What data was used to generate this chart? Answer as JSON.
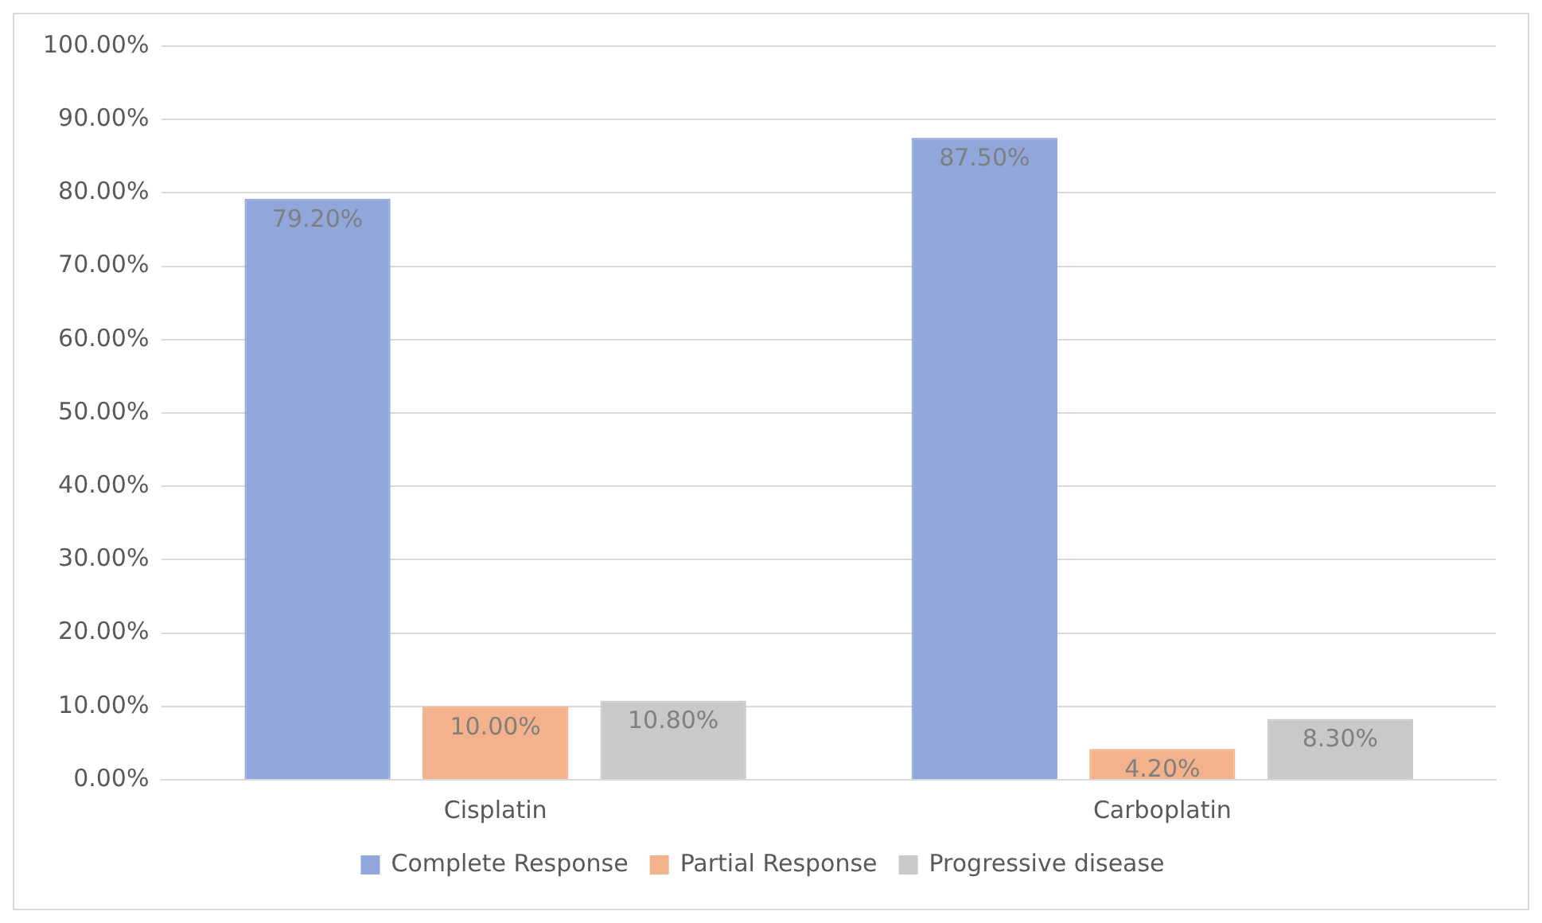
{
  "chart_data": {
    "type": "bar",
    "categories": [
      "Cisplatin",
      "Carboplatin"
    ],
    "series": [
      {
        "name": "Complete Response",
        "color": "#91a7db",
        "values": [
          79.2,
          87.5
        ],
        "value_labels": [
          "79.20%",
          "87.50%"
        ]
      },
      {
        "name": "Partial Response",
        "color": "#f4b28c",
        "values": [
          10.0,
          4.2
        ],
        "value_labels": [
          "10.00%",
          "4.20%"
        ]
      },
      {
        "name": "Progressive disease",
        "color": "#c9c9c9",
        "values": [
          10.8,
          8.3
        ],
        "value_labels": [
          "10.80%",
          "8.30%"
        ]
      }
    ],
    "ylim": [
      0,
      100
    ],
    "yticks": [
      {
        "value": 0,
        "label": "0.00%"
      },
      {
        "value": 10,
        "label": "10.00%"
      },
      {
        "value": 20,
        "label": "20.00%"
      },
      {
        "value": 30,
        "label": "30.00%"
      },
      {
        "value": 40,
        "label": "40.00%"
      },
      {
        "value": 50,
        "label": "50.00%"
      },
      {
        "value": 60,
        "label": "60.00%"
      },
      {
        "value": 70,
        "label": "70.00%"
      },
      {
        "value": 80,
        "label": "80.00%"
      },
      {
        "value": 90,
        "label": "90.00%"
      },
      {
        "value": 100,
        "label": "100.00%"
      }
    ],
    "grid": "y",
    "legend": "bottom"
  }
}
